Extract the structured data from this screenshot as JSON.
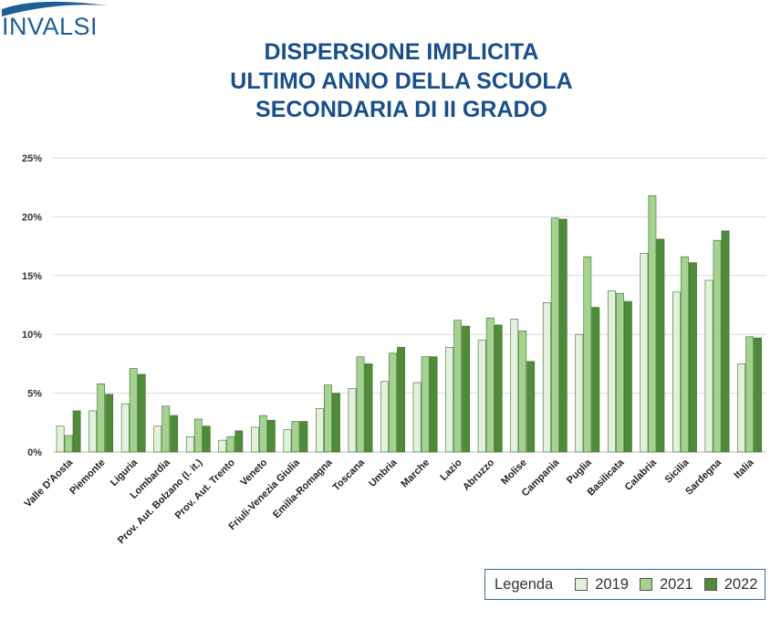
{
  "logo": {
    "text": "INVALSI"
  },
  "title_lines": [
    "DISPERSIONE IMPLICITA",
    "ULTIMO ANNO DELLA SCUOLA",
    "SECONDARIA DI II GRADO"
  ],
  "legend": {
    "title": "Legenda"
  },
  "colors": {
    "title": "#1a4f8b",
    "logo": "#1f5e95",
    "series": [
      "#e2f1dc",
      "#a3d38f",
      "#4f8b3a"
    ],
    "bar_border": "#3f6a2c",
    "grid": "#d9d9d9"
  },
  "chart_data": {
    "type": "bar",
    "title": "DISPERSIONE IMPLICITA ULTIMO ANNO DELLA SCUOLA SECONDARIA DI II GRADO",
    "xlabel": "",
    "ylabel": "",
    "ylim": [
      0,
      25
    ],
    "yticks": [
      0,
      5,
      10,
      15,
      20,
      25
    ],
    "ytick_labels": [
      "0%",
      "5%",
      "10%",
      "15%",
      "20%",
      "25%"
    ],
    "grid": true,
    "legend_position": "bottom-right",
    "categories": [
      "Valle D'Aosta",
      "Piemonte",
      "Liguria",
      "Lombardia",
      "Prov. Aut. Bolzano (l. it.)",
      "Prov. Aut. Trento",
      "Veneto",
      "Friuli-Venezia Giulia",
      "Emilia-Romagna",
      "Toscana",
      "Umbria",
      "Marche",
      "Lazio",
      "Abruzzo",
      "Molise",
      "Campania",
      "Puglia",
      "Basilicata",
      "Calabria",
      "Sicilia",
      "Sardegna",
      "Italia"
    ],
    "series": [
      {
        "name": "2019",
        "values": [
          2.2,
          3.5,
          4.1,
          2.2,
          1.3,
          1.0,
          2.1,
          1.9,
          3.7,
          5.4,
          6.0,
          5.9,
          8.9,
          9.5,
          11.3,
          12.7,
          10.0,
          13.7,
          16.9,
          13.6,
          14.6,
          7.5
        ]
      },
      {
        "name": "2021",
        "values": [
          1.4,
          5.8,
          7.1,
          3.9,
          2.8,
          1.3,
          3.1,
          2.6,
          5.7,
          8.1,
          8.4,
          8.1,
          11.2,
          11.4,
          10.3,
          19.9,
          16.6,
          13.5,
          21.8,
          16.6,
          18.0,
          9.8
        ]
      },
      {
        "name": "2022",
        "values": [
          3.5,
          4.9,
          6.6,
          3.1,
          2.2,
          1.8,
          2.7,
          2.6,
          5.0,
          7.5,
          8.9,
          8.1,
          10.7,
          10.8,
          7.7,
          19.8,
          12.3,
          12.8,
          18.1,
          16.1,
          18.8,
          9.7
        ]
      }
    ]
  }
}
